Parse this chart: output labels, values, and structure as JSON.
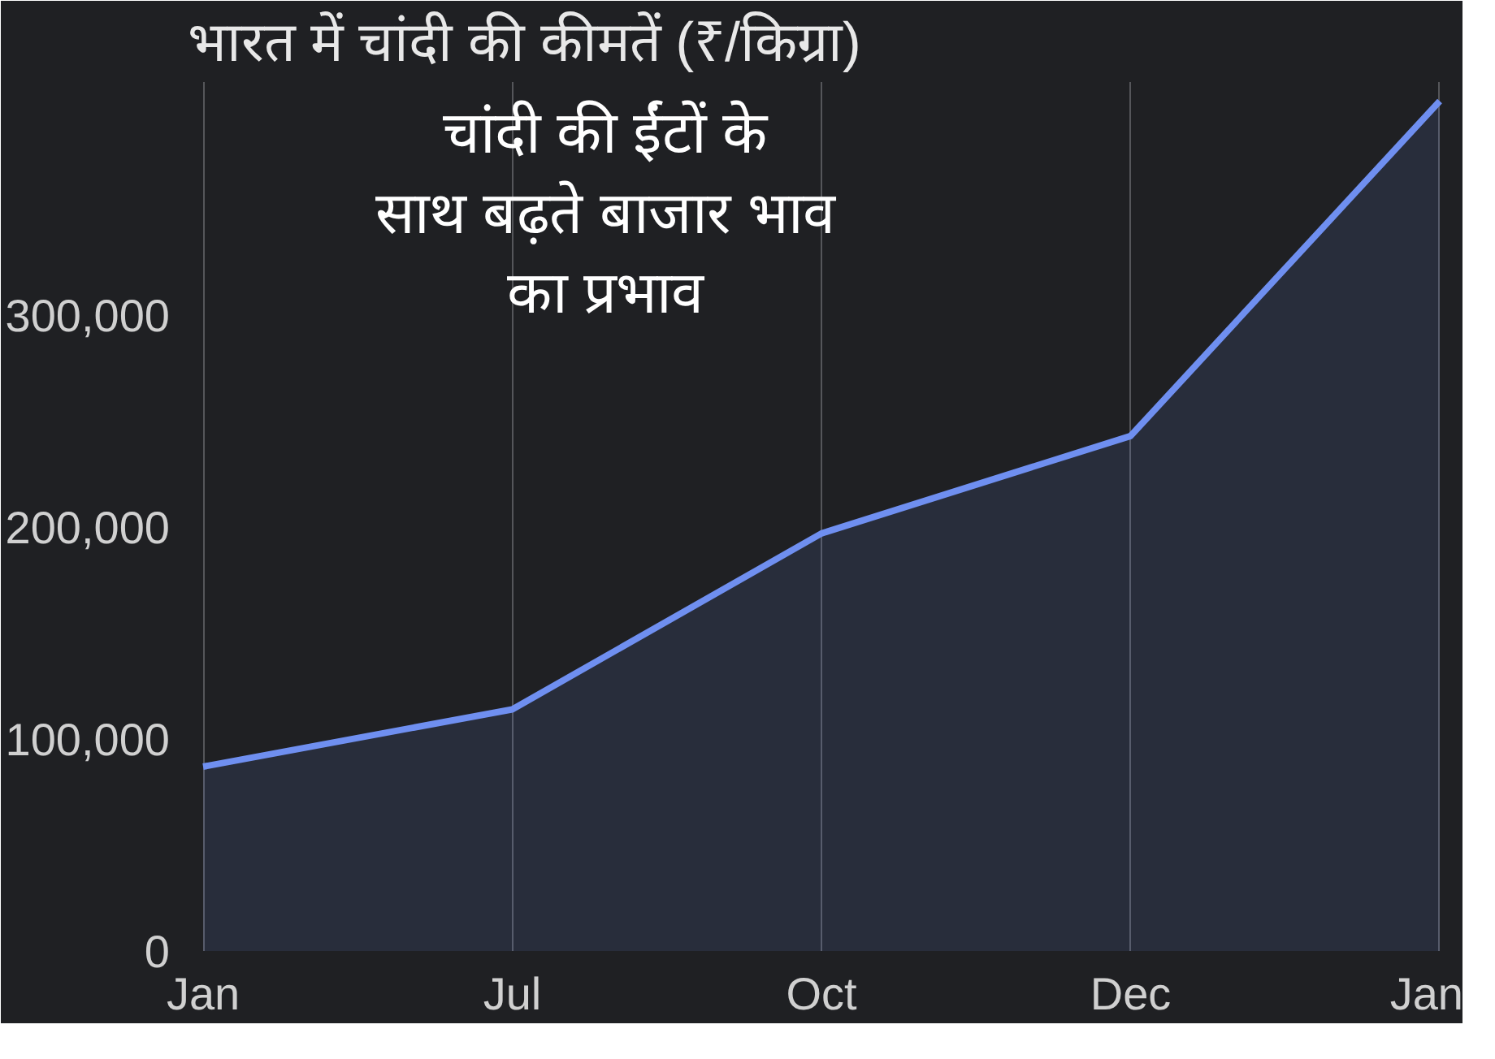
{
  "chart_data": {
    "type": "area",
    "title": "भारत में चांदी की कीमतें (₹/किग्रा)",
    "annotations": [
      "चांदी की ईंटों के साथ बढ़ते बाजार भाव का प्रभाव"
    ],
    "categories": [
      "Jan",
      "Jul",
      "Oct",
      "Dec",
      "Jan"
    ],
    "series": [
      {
        "color": "#6f8ff0",
        "values": [
          87000,
          114000,
          197000,
          243000,
          401000
        ]
      }
    ],
    "ylim": [
      0,
      410000
    ],
    "yticks": [
      0,
      {
        "value": 100000,
        "label": "100,000"
      },
      {
        "value": 200000,
        "label": "200,000"
      },
      {
        "value": 300000,
        "label": "300,000"
      }
    ],
    "grid": "x",
    "marker": "none",
    "line_style": "solid"
  }
}
